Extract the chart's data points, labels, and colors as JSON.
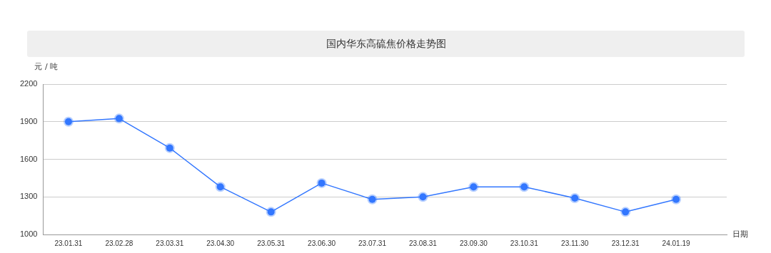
{
  "chart_data": {
    "type": "line",
    "title": "国内华东高硫焦价格走势图",
    "xlabel": "日期",
    "ylabel": "元 / 吨",
    "categories": [
      "23.01.31",
      "23.02.28",
      "23.03.31",
      "23.04.30",
      "23.05.31",
      "23.06.30",
      "23.07.31",
      "23.08.31",
      "23.09.30",
      "23.10.31",
      "23.11.30",
      "23.12.31",
      "24.01.19"
    ],
    "series": [
      {
        "color": "#3377ff",
        "values": [
          1900,
          1925,
          1690,
          1380,
          1180,
          1410,
          1280,
          1300,
          1380,
          1380,
          1290,
          1180,
          1280
        ]
      }
    ],
    "ylim": [
      1000,
      2200
    ],
    "yticks": [
      1000,
      1300,
      1600,
      1900,
      2200
    ],
    "grid": "y",
    "legend": false,
    "marker": "circle",
    "line_style": "solid"
  }
}
